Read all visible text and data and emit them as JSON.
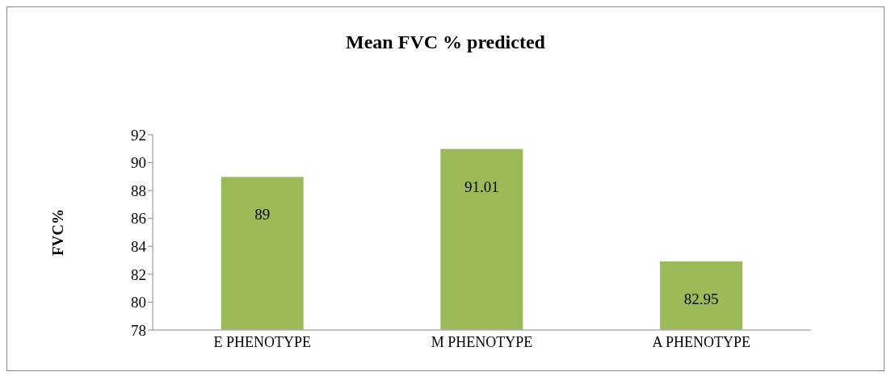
{
  "chart_data": {
    "type": "bar",
    "title": "Mean FVC % predicted",
    "ylabel": "FVC%",
    "categories": [
      "E PHENOTYPE",
      "M PHENOTYPE",
      "A PHENOTYPE"
    ],
    "values": [
      89,
      91.01,
      82.95
    ],
    "color": "#9bbb59",
    "ylim": [
      78,
      92
    ],
    "yticks": [
      78,
      80,
      82,
      84,
      86,
      88,
      90,
      92
    ],
    "grid": false,
    "data_labels": true
  }
}
